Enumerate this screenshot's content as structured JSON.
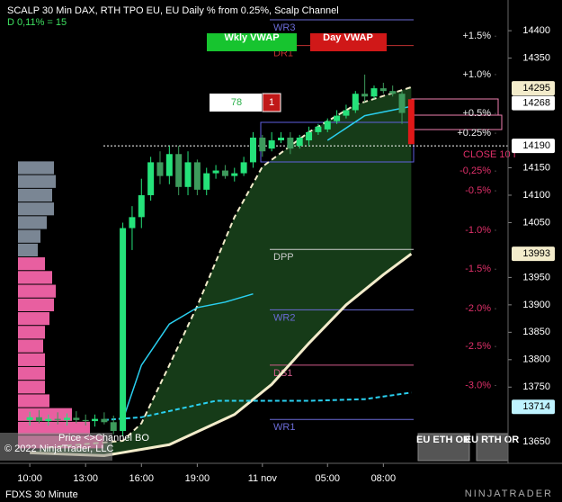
{
  "header": {
    "title": "SCALP 30 Min DAX, RTH TPO EU, EU Daily % from 0.25%, Scalp Channel",
    "subtitle": "D 0,11% = 15"
  },
  "chart_data": {
    "type": "candlestick",
    "x": [
      0,
      1,
      2,
      3,
      4,
      5,
      6,
      7,
      8,
      9,
      10,
      11,
      12,
      13,
      14,
      15,
      16,
      17,
      18,
      19,
      20,
      21,
      22,
      23,
      24,
      25,
      26,
      27,
      28,
      29,
      30,
      31,
      32,
      33,
      34,
      35,
      36,
      37,
      38,
      39,
      40
    ],
    "open": [
      13690,
      13695,
      13688,
      13692,
      13690,
      13694,
      13690,
      13688,
      13692,
      13686,
      13670,
      14040,
      14060,
      14100,
      14160,
      14135,
      14175,
      14115,
      14160,
      14110,
      14140,
      14145,
      14135,
      14140,
      14160,
      14205,
      14185,
      14200,
      14205,
      14190,
      14200,
      14215,
      14220,
      14235,
      14245,
      14255,
      14285,
      14280,
      14295,
      14290,
      14285
    ],
    "high": [
      13705,
      13708,
      13700,
      13704,
      13702,
      13706,
      13700,
      13700,
      13704,
      13698,
      14050,
      14080,
      14130,
      14170,
      14180,
      14190,
      14190,
      14180,
      14165,
      14150,
      14155,
      14155,
      14150,
      14170,
      14215,
      14210,
      14215,
      14215,
      14215,
      14210,
      14225,
      14230,
      14240,
      14255,
      14265,
      14290,
      14320,
      14300,
      14305,
      14300,
      14290
    ],
    "low": [
      13680,
      13684,
      13680,
      13682,
      13680,
      13684,
      13680,
      13678,
      13682,
      13664,
      13660,
      14000,
      14040,
      14090,
      14120,
      14120,
      14100,
      14100,
      14100,
      14100,
      14130,
      14130,
      14125,
      14135,
      14150,
      14170,
      14180,
      14195,
      14175,
      14185,
      14190,
      14210,
      14215,
      14230,
      14240,
      14250,
      14270,
      14275,
      14285,
      14280,
      14230
    ],
    "close": [
      13695,
      13688,
      13692,
      13690,
      13694,
      13690,
      13688,
      13692,
      13686,
      13670,
      14040,
      14060,
      14100,
      14160,
      14135,
      14175,
      14115,
      14160,
      14110,
      14140,
      14145,
      14135,
      14140,
      14160,
      14205,
      14180,
      14200,
      14205,
      14185,
      14205,
      14215,
      14225,
      14235,
      14245,
      14255,
      14285,
      14280,
      14295,
      14290,
      14285,
      14250
    ],
    "up_color": "#25e27a",
    "down_color": "#3d9a5c",
    "xlim": [
      -3.2,
      51.4
    ],
    "xticks": [
      {
        "value": 0,
        "label": "10:00"
      },
      {
        "value": 6,
        "label": "13:00"
      },
      {
        "value": 12,
        "label": "16:00"
      },
      {
        "value": 18,
        "label": "19:00"
      },
      {
        "value": 25,
        "label": "11 nov"
      },
      {
        "value": 32,
        "label": "05:00"
      },
      {
        "value": 38,
        "label": "08:00"
      }
    ],
    "ylim": [
      13611,
      14456
    ],
    "yticks": [
      14400,
      14350,
      14150,
      14100,
      14050,
      13950,
      13900,
      13850,
      13800,
      13750,
      13650
    ],
    "lines": [
      {
        "color": "#f3eccb",
        "dash": "6 4",
        "width": 2,
        "x": [
          2,
          10,
          12,
          15,
          18,
          22,
          25,
          30,
          35,
          41
        ],
        "values": [
          13640,
          13652,
          13684,
          13790,
          13898,
          14060,
          14152,
          14215,
          14265,
          14297
        ]
      },
      {
        "color": "#f3eccb",
        "dash": "none",
        "width": 3,
        "x": [
          0,
          8,
          15,
          22,
          26,
          30,
          34,
          38,
          41
        ],
        "values": [
          13630,
          13625,
          13645,
          13700,
          13755,
          13830,
          13900,
          13955,
          13993
        ]
      },
      {
        "color": "#2ad0f0",
        "dash": "none",
        "width": 1.5,
        "x": [
          10,
          12,
          15,
          18,
          21,
          24,
          28,
          32,
          36,
          41
        ],
        "values": [
          13690,
          13790,
          13865,
          13895,
          13905,
          13920,
          null,
          14200,
          14245,
          14262
        ]
      },
      {
        "color": "#2ad0f0",
        "dash": "5 3",
        "width": 2,
        "x": [
          8,
          12,
          16,
          20,
          24,
          30,
          36,
          41
        ],
        "values": [
          13690,
          13695,
          13710,
          13725,
          13725,
          13725,
          13728,
          13740
        ]
      }
    ],
    "levels": [
      {
        "label": "WR3",
        "value": 14420,
        "color": "#6b6bd6"
      },
      {
        "label": "DR1",
        "value": 14373,
        "color": "#c03030"
      },
      {
        "label": "DPP",
        "value": 14001,
        "color": "#cccccc"
      },
      {
        "label": "WR2",
        "value": 13891,
        "color": "#6b6bd6"
      },
      {
        "label": "DS1",
        "value": 13790,
        "color": "#d05a8a"
      },
      {
        "label": "WR1",
        "value": 13691,
        "color": "#6b6bd6"
      }
    ],
    "pct_levels": [
      {
        "label": "+1.5%",
        "value": 14390
      },
      {
        "label": "+1.0%",
        "value": 14320
      },
      {
        "label": "+0.5%",
        "value": 14249
      },
      {
        "label": "+0.25%",
        "value": 14213
      },
      {
        "label": "-0,25%",
        "value": 14144
      },
      {
        "label": "-0.5%",
        "value": 14108
      },
      {
        "label": "-1.0%",
        "value": 14036
      },
      {
        "label": "-1.5%",
        "value": 13965
      },
      {
        "label": "-2.0%",
        "value": 13893
      },
      {
        "label": "-2.5%",
        "value": 13824
      },
      {
        "label": "-3.0%",
        "value": 13753
      }
    ],
    "close_level": {
      "label": "CLOSE 10 I",
      "value": 14190
    },
    "price_markers": [
      {
        "value": 14295,
        "color": "#f3eccb"
      },
      {
        "value": 14268,
        "color": "#ffffff"
      },
      {
        "value": 14190,
        "color": "#ffffff"
      },
      {
        "value": 13993,
        "color": "#f3eccb"
      },
      {
        "value": 13714,
        "color": "#bff3ff"
      }
    ],
    "last_bar": {
      "x": 41,
      "open": 14275,
      "close": 14193,
      "color": "#e01818"
    },
    "profile": [
      {
        "color": "#e85fa0",
        "prices": [
          13650,
          13675,
          13700,
          13725,
          13750,
          13775,
          13800,
          13825,
          13850,
          13875,
          13900,
          13925,
          13950,
          13975
        ],
        "volumes": [
          95,
          80,
          60,
          35,
          30,
          30,
          30,
          28,
          30,
          35,
          40,
          42,
          38,
          30
        ]
      },
      {
        "color": "#7a8694",
        "prices": [
          14000,
          14025,
          14050,
          14075,
          14100,
          14125,
          14150
        ],
        "volumes": [
          22,
          25,
          32,
          40,
          38,
          42,
          40
        ]
      }
    ]
  },
  "buttons": {
    "wkly": "Wkly VWAP",
    "day": "Day VWAP",
    "eu_eth": "EU ETH OR",
    "eu_rth": "EU RTH OR"
  },
  "counter": {
    "value": "78",
    "count": "1"
  },
  "annotation": "Price <>Channel BO",
  "footer": {
    "copyright": "© 2022 NinjaTrader, LLC",
    "instrument": "FDXS 30 Minute",
    "logo": "NINJATRADER"
  }
}
